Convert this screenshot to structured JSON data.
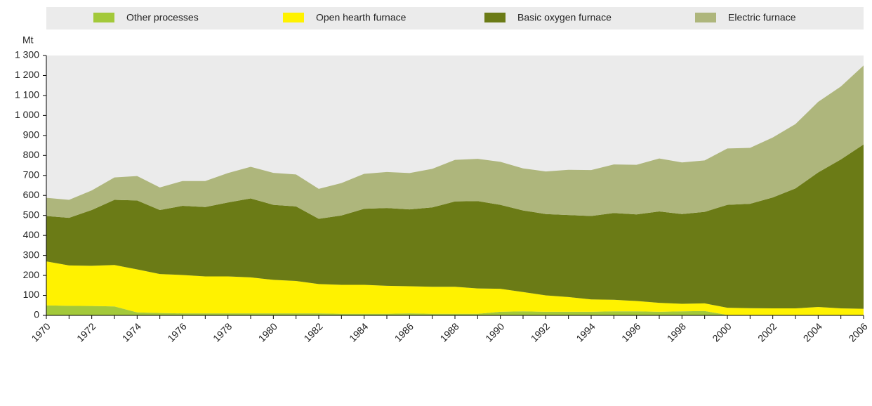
{
  "chart_data": {
    "type": "stacked_area",
    "y_unit": "Mt",
    "x": [
      1970,
      1971,
      1972,
      1973,
      1974,
      1975,
      1976,
      1977,
      1978,
      1979,
      1980,
      1981,
      1982,
      1983,
      1984,
      1985,
      1986,
      1987,
      1988,
      1989,
      1990,
      1991,
      1992,
      1993,
      1994,
      1995,
      1996,
      1997,
      1998,
      1999,
      2000,
      2001,
      2002,
      2003,
      2004,
      2005,
      2006
    ],
    "series": [
      {
        "name": "Other processes",
        "color": "#a3c93a",
        "values": [
          50,
          48,
          47,
          45,
          15,
          12,
          10,
          10,
          10,
          10,
          10,
          10,
          10,
          8,
          8,
          8,
          10,
          8,
          8,
          8,
          18,
          20,
          18,
          18,
          18,
          20,
          20,
          18,
          20,
          22,
          2,
          2,
          2,
          2,
          2,
          2,
          2
        ]
      },
      {
        "name": "Open hearth furnace",
        "color": "#fff200",
        "values": [
          220,
          202,
          201,
          207,
          215,
          195,
          192,
          185,
          185,
          180,
          168,
          162,
          147,
          145,
          145,
          140,
          136,
          135,
          135,
          127,
          115,
          97,
          82,
          74,
          62,
          58,
          52,
          45,
          38,
          38,
          36,
          34,
          33,
          33,
          40,
          33,
          31
        ]
      },
      {
        "name": "Basic oxygen furnace",
        "color": "#6b7b16",
        "values": [
          227,
          238,
          279,
          326,
          345,
          320,
          346,
          347,
          370,
          395,
          375,
          373,
          326,
          347,
          380,
          389,
          384,
          397,
          427,
          437,
          420,
          408,
          407,
          410,
          417,
          434,
          433,
          457,
          449,
          458,
          515,
          522,
          555,
          600,
          673,
          745,
          822
        ]
      },
      {
        "name": "Electric furnace",
        "color": "#aeb67c",
        "values": [
          91,
          90,
          98,
          112,
          122,
          113,
          124,
          130,
          147,
          158,
          160,
          160,
          150,
          162,
          175,
          180,
          182,
          193,
          208,
          211,
          215,
          210,
          213,
          226,
          230,
          243,
          248,
          265,
          258,
          257,
          282,
          280,
          300,
          322,
          353,
          365,
          395
        ]
      }
    ],
    "xlim": [
      1970,
      2006
    ],
    "xticks": [
      1970,
      1972,
      1974,
      1976,
      1978,
      1980,
      1982,
      1984,
      1986,
      1988,
      1990,
      1992,
      1994,
      1996,
      1998,
      2000,
      2002,
      2004,
      2006
    ],
    "ylim": [
      0,
      1300
    ],
    "yticks": [
      0,
      100,
      200,
      300,
      400,
      500,
      600,
      700,
      800,
      900,
      {
        "value": 1000,
        "label": "1 000"
      },
      {
        "value": 1100,
        "label": "1 100"
      },
      {
        "value": 1200,
        "label": "1 200"
      },
      {
        "value": 1300,
        "label": "1 300"
      }
    ]
  }
}
